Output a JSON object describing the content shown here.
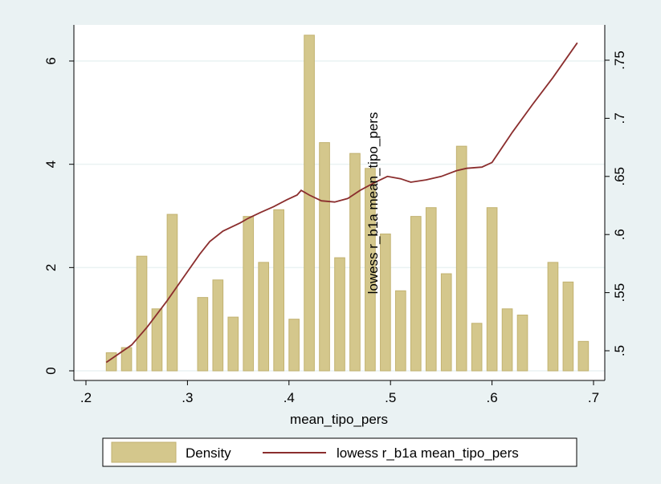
{
  "colors": {
    "background": "#EAF2F3",
    "plot_background": "#FFFFFF",
    "grid": "#EAF2F3",
    "bar_fill": "#D4C78C",
    "bar_stroke": "#C2B270",
    "line": "#8B2E2E",
    "axis": "#000000"
  },
  "chart_data": {
    "type": "bar",
    "title": "",
    "xlabel": "mean_tipo_pers",
    "ylabel": "",
    "y2label": "lowess r_b1a mean_tipo_pers",
    "xlim": [
      0.2,
      0.7
    ],
    "ylim": [
      0,
      6.6
    ],
    "y2lim": [
      0.49,
      0.76
    ],
    "grid": true,
    "legend_position": "bottom",
    "x_ticks": [
      ".2",
      ".3",
      ".4",
      ".5",
      ".6",
      ".7"
    ],
    "x_tick_values": [
      0.2,
      0.3,
      0.4,
      0.5,
      0.6,
      0.7
    ],
    "y_ticks": [
      "0",
      "2",
      "4",
      "6"
    ],
    "y_tick_values": [
      0,
      2,
      4,
      6
    ],
    "y2_ticks": [
      ".5",
      ".55",
      ".6",
      ".65",
      ".7",
      ".75"
    ],
    "y2_tick_values": [
      0.5,
      0.55,
      0.6,
      0.65,
      0.7,
      0.75
    ],
    "bin_width": 0.01,
    "bins": [
      {
        "x0": 0.22,
        "density": 0.35
      },
      {
        "x0": 0.235,
        "density": 0.45
      },
      {
        "x0": 0.25,
        "density": 2.22
      },
      {
        "x0": 0.265,
        "density": 1.2
      },
      {
        "x0": 0.28,
        "density": 3.03
      },
      {
        "x0": 0.31,
        "density": 1.42
      },
      {
        "x0": 0.325,
        "density": 1.76
      },
      {
        "x0": 0.34,
        "density": 1.04
      },
      {
        "x0": 0.355,
        "density": 2.99
      },
      {
        "x0": 0.37,
        "density": 2.1
      },
      {
        "x0": 0.385,
        "density": 3.12
      },
      {
        "x0": 0.4,
        "density": 1.0
      },
      {
        "x0": 0.415,
        "density": 6.5
      },
      {
        "x0": 0.43,
        "density": 4.42
      },
      {
        "x0": 0.445,
        "density": 2.19
      },
      {
        "x0": 0.46,
        "density": 4.21
      },
      {
        "x0": 0.475,
        "density": 3.92
      },
      {
        "x0": 0.49,
        "density": 2.65
      },
      {
        "x0": 0.505,
        "density": 1.55
      },
      {
        "x0": 0.52,
        "density": 2.99
      },
      {
        "x0": 0.535,
        "density": 3.16
      },
      {
        "x0": 0.55,
        "density": 1.88
      },
      {
        "x0": 0.565,
        "density": 4.35
      },
      {
        "x0": 0.58,
        "density": 0.92
      },
      {
        "x0": 0.595,
        "density": 3.16
      },
      {
        "x0": 0.61,
        "density": 1.2
      },
      {
        "x0": 0.625,
        "density": 1.08
      },
      {
        "x0": 0.655,
        "density": 2.1
      },
      {
        "x0": 0.67,
        "density": 1.72
      },
      {
        "x0": 0.685,
        "density": 0.57
      }
    ],
    "series": [
      {
        "name": "Density",
        "kind": "bar"
      },
      {
        "name": "lowess r_b1a mean_tipo_pers",
        "kind": "line",
        "axis": "right",
        "x": [
          0.22,
          0.245,
          0.255,
          0.26,
          0.28,
          0.3,
          0.312,
          0.322,
          0.335,
          0.352,
          0.36,
          0.372,
          0.385,
          0.398,
          0.408,
          0.412,
          0.42,
          0.432,
          0.445,
          0.458,
          0.47,
          0.485,
          0.497,
          0.51,
          0.52,
          0.535,
          0.55,
          0.565,
          0.575,
          0.59,
          0.6,
          0.62,
          0.64,
          0.66,
          0.684
        ],
        "y": [
          0.49,
          0.505,
          0.515,
          0.52,
          0.543,
          0.568,
          0.583,
          0.594,
          0.603,
          0.61,
          0.614,
          0.619,
          0.624,
          0.63,
          0.634,
          0.638,
          0.634,
          0.629,
          0.628,
          0.631,
          0.638,
          0.645,
          0.65,
          0.648,
          0.645,
          0.647,
          0.65,
          0.655,
          0.657,
          0.658,
          0.662,
          0.688,
          0.712,
          0.735,
          0.765
        ]
      }
    ]
  }
}
